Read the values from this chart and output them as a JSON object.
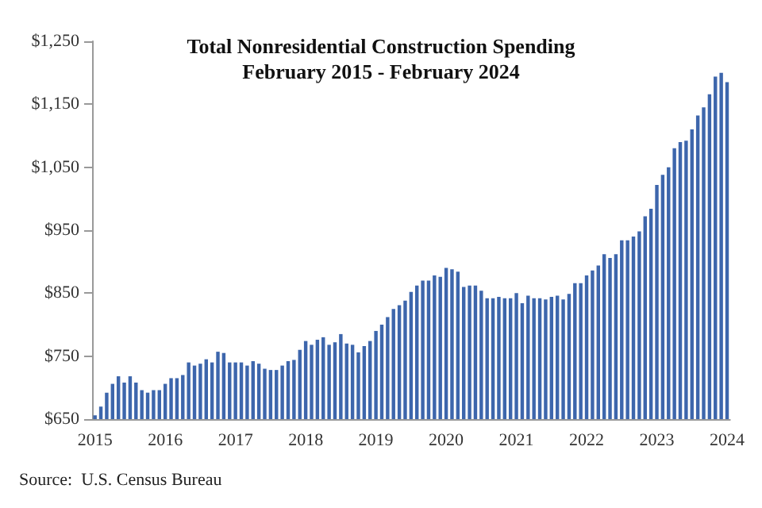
{
  "chart_data": {
    "type": "bar",
    "title": "Total Nonresidential Construction Spending\nFebruary 2015 - February 2024",
    "categories": [
      "2015",
      null,
      null,
      null,
      null,
      null,
      null,
      null,
      null,
      null,
      null,
      null,
      "2016",
      null,
      null,
      null,
      null,
      null,
      null,
      null,
      null,
      null,
      null,
      null,
      "2017",
      null,
      null,
      null,
      null,
      null,
      null,
      null,
      null,
      null,
      null,
      null,
      "2018",
      null,
      null,
      null,
      null,
      null,
      null,
      null,
      null,
      null,
      null,
      null,
      "2019",
      null,
      null,
      null,
      null,
      null,
      null,
      null,
      null,
      null,
      null,
      null,
      "2020",
      null,
      null,
      null,
      null,
      null,
      null,
      null,
      null,
      null,
      null,
      null,
      "2021",
      null,
      null,
      null,
      null,
      null,
      null,
      null,
      null,
      null,
      null,
      null,
      "2022",
      null,
      null,
      null,
      null,
      null,
      null,
      null,
      null,
      null,
      null,
      null,
      "2023",
      null,
      null,
      null,
      null,
      null,
      null,
      null,
      null,
      null,
      null,
      null,
      "2024"
    ],
    "values": [
      656,
      670,
      692,
      706,
      718,
      708,
      718,
      708,
      696,
      692,
      696,
      696,
      706,
      715,
      715,
      720,
      740,
      735,
      738,
      745,
      740,
      757,
      755,
      740,
      740,
      740,
      735,
      742,
      738,
      730,
      728,
      728,
      735,
      742,
      744,
      760,
      774,
      768,
      776,
      780,
      768,
      772,
      785,
      770,
      768,
      756,
      766,
      774,
      790,
      800,
      812,
      825,
      831,
      838,
      852,
      862,
      870,
      870,
      878,
      876,
      890,
      888,
      884,
      860,
      862,
      862,
      854,
      842,
      842,
      844,
      842,
      842,
      850,
      834,
      846,
      842,
      842,
      840,
      844,
      846,
      840,
      849,
      866,
      866,
      878,
      886,
      894,
      912,
      906,
      912,
      934,
      934,
      940,
      948,
      972,
      984,
      1022,
      1038,
      1050,
      1080,
      1090,
      1092,
      1110,
      1132,
      1145,
      1166,
      1194,
      1200,
      1185
    ],
    "color": "#3d66ac",
    "ylim": [
      650,
      1250
    ],
    "yticks": [
      {
        "value": 650,
        "label": "$650"
      },
      {
        "value": 750,
        "label": "$750"
      },
      {
        "value": 850,
        "label": "$850"
      },
      {
        "value": 950,
        "label": "$950"
      },
      {
        "value": 1050,
        "label": "$1,050"
      },
      {
        "value": 1150,
        "label": "$1,150"
      },
      {
        "value": 1250,
        "label": "$1,250"
      }
    ],
    "grid": false,
    "annotations": [
      "Source:  U.S. Census Bureau"
    ]
  }
}
